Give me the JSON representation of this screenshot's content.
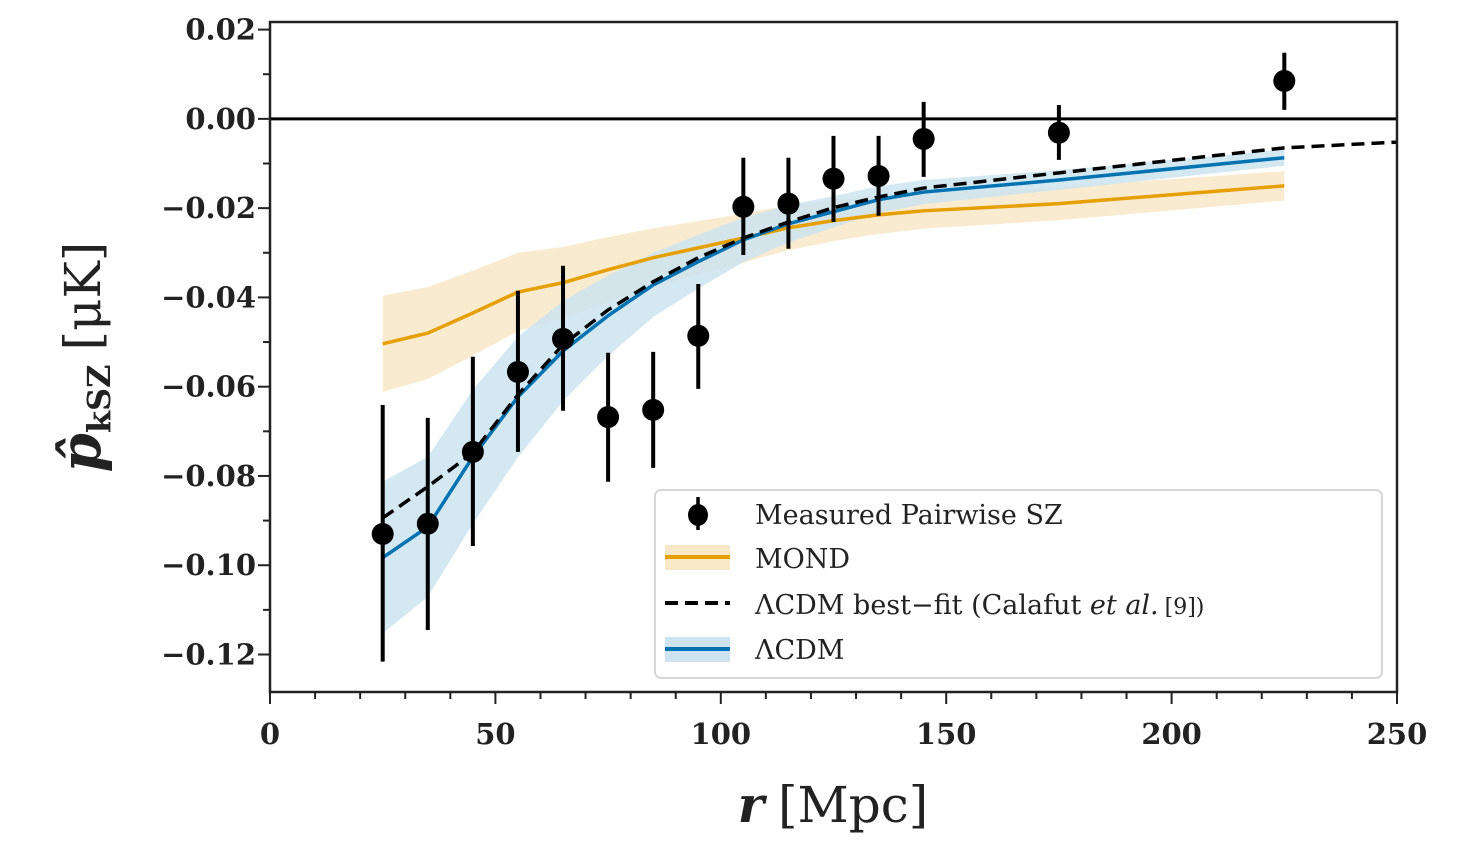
{
  "chart_data": {
    "type": "line",
    "xlabel": "r [Mpc]",
    "ylabel": "p̂kSZ [μK]",
    "ylabel_main": "p̂",
    "ylabel_sub": "kSZ",
    "ylabel_unit": "[μK]",
    "xlabel_var": "r",
    "xlabel_unit": "[Mpc]",
    "xlim": [
      0,
      250
    ],
    "ylim": [
      -0.1284,
      0.0217
    ],
    "xticks": [
      0,
      50,
      100,
      150,
      200,
      250
    ],
    "xtick_labels": [
      "0",
      "50",
      "100",
      "150",
      "200",
      "250"
    ],
    "yticks": [
      0.02,
      0.0,
      -0.02,
      -0.04,
      -0.06,
      -0.08,
      -0.1,
      -0.12
    ],
    "ytick_labels": [
      "0.02",
      "0.00",
      "−0.02",
      "−0.04",
      "−0.06",
      "−0.08",
      "−0.10",
      "−0.12"
    ],
    "grid": false,
    "reference_line_y": 0.0,
    "legend_placement": "lower-right",
    "legend": [
      {
        "label": "Measured Pairwise SZ"
      },
      {
        "label": "MOND"
      },
      {
        "label": "ΛCDM best−fit (Calafut ",
        "label_italic": "et al.",
        "label_ref": "[9])"
      },
      {
        "label": "ΛCDM"
      }
    ],
    "colors": {
      "mond": "#e69f00",
      "mond_band": "#f8e8c8",
      "lcdm": "#0072b2",
      "lcdm_band": "#cde4f0",
      "data": "#000000",
      "bestfit": "#000000"
    },
    "measured": {
      "name": "Measured Pairwise SZ",
      "x": [
        25,
        35,
        45,
        55,
        65,
        75,
        85,
        95,
        105,
        115,
        125,
        135,
        145,
        175,
        225
      ],
      "y": [
        -0.093,
        -0.0907,
        -0.0746,
        -0.0567,
        -0.0493,
        -0.0668,
        -0.0652,
        -0.0486,
        -0.0197,
        -0.019,
        -0.0134,
        -0.0128,
        -0.0045,
        -0.0031,
        0.0085
      ],
      "err_upper": [
        -0.0641,
        -0.067,
        -0.0533,
        -0.0385,
        -0.0329,
        -0.0524,
        -0.0522,
        -0.037,
        -0.0087,
        -0.0087,
        -0.0038,
        -0.0038,
        0.0038,
        0.0031,
        0.0148
      ],
      "err_lower": [
        -0.1216,
        -0.1145,
        -0.0957,
        -0.0746,
        -0.0654,
        -0.0813,
        -0.0782,
        -0.0605,
        -0.0305,
        -0.0291,
        -0.0231,
        -0.0217,
        -0.013,
        -0.0092,
        0.002
      ]
    },
    "mond": {
      "name": "MOND",
      "x": [
        25,
        35,
        45,
        55,
        65,
        75,
        85,
        95,
        105,
        115,
        125,
        135,
        145,
        175,
        225
      ],
      "y": [
        -0.0504,
        -0.048,
        -0.0435,
        -0.0388,
        -0.0367,
        -0.0338,
        -0.0311,
        -0.0289,
        -0.0267,
        -0.0244,
        -0.0228,
        -0.0215,
        -0.0206,
        -0.019,
        -0.015
      ],
      "upper": [
        -0.0396,
        -0.0377,
        -0.034,
        -0.03,
        -0.0287,
        -0.0265,
        -0.0245,
        -0.0229,
        -0.0212,
        -0.0194,
        -0.0182,
        -0.0172,
        -0.0166,
        -0.0153,
        -0.0117
      ],
      "lower": [
        -0.0612,
        -0.0583,
        -0.053,
        -0.0476,
        -0.0447,
        -0.0411,
        -0.0377,
        -0.0349,
        -0.0322,
        -0.0294,
        -0.0274,
        -0.0258,
        -0.0246,
        -0.0227,
        -0.0183
      ]
    },
    "lcdm": {
      "name": "ΛCDM",
      "x": [
        25,
        35,
        45,
        55,
        65,
        75,
        85,
        95,
        105,
        115,
        125,
        135,
        145,
        175,
        225
      ],
      "y": [
        -0.0983,
        -0.0914,
        -0.0757,
        -0.0623,
        -0.052,
        -0.0441,
        -0.0372,
        -0.032,
        -0.0271,
        -0.0235,
        -0.0208,
        -0.0181,
        -0.0164,
        -0.0137,
        -0.0087
      ],
      "upper": [
        -0.0813,
        -0.0757,
        -0.0607,
        -0.0488,
        -0.0408,
        -0.0351,
        -0.03,
        -0.026,
        -0.0221,
        -0.0193,
        -0.0173,
        -0.0151,
        -0.0137,
        -0.0115,
        -0.0069
      ],
      "lower": [
        -0.1153,
        -0.1071,
        -0.0907,
        -0.0758,
        -0.0632,
        -0.0531,
        -0.0444,
        -0.038,
        -0.0321,
        -0.0277,
        -0.0243,
        -0.0211,
        -0.0191,
        -0.0159,
        -0.0105
      ]
    },
    "bestfit": {
      "name": "ΛCDM best−fit (Calafut et al. [9])",
      "x": [
        25,
        35,
        45,
        55,
        65,
        75,
        85,
        95,
        105,
        115,
        125,
        135,
        145,
        175,
        225,
        250
      ],
      "y": [
        -0.0894,
        -0.0824,
        -0.0748,
        -0.0618,
        -0.0506,
        -0.0428,
        -0.0365,
        -0.0311,
        -0.0267,
        -0.0231,
        -0.0199,
        -0.0175,
        -0.0155,
        -0.0121,
        -0.0065,
        -0.0052
      ]
    }
  }
}
